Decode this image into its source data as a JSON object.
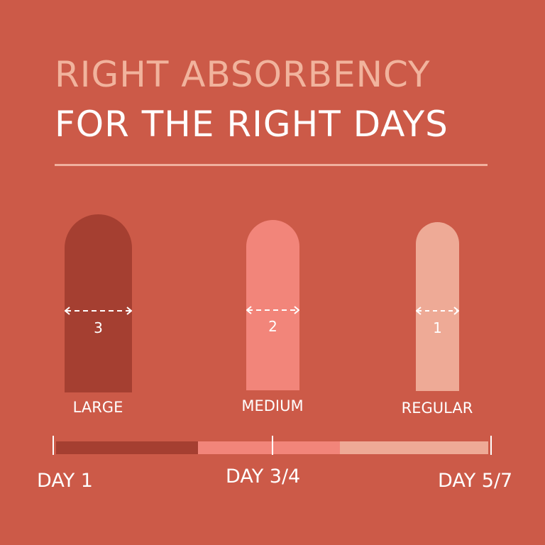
{
  "title": {
    "line1": "RIGHT ABSORBENCY",
    "line2": "FOR THE RIGHT DAYS"
  },
  "colors": {
    "background": "#cc5a48",
    "large": "#a53f31",
    "medium": "#f2857a",
    "regular": "#eeaa96",
    "title_accent": "#f1b39d"
  },
  "products": [
    {
      "label": "LARGE",
      "absorbency": "3"
    },
    {
      "label": "MEDIUM",
      "absorbency": "2"
    },
    {
      "label": "REGULAR",
      "absorbency": "1"
    }
  ],
  "timeline": {
    "days": [
      "DAY 1",
      "DAY 3/4",
      "DAY 5/7"
    ]
  }
}
